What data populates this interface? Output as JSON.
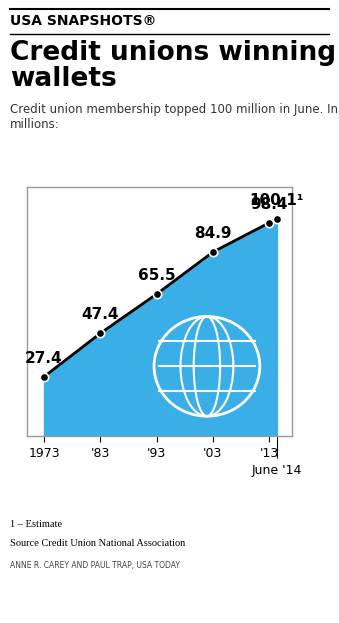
{
  "chart_data": {
    "type": "line",
    "header": "USA SNAPSHOTS®",
    "title": "Credit unions winning wallets",
    "subtitle": "Credit union membership topped 100 million in June. In millions:",
    "x": [
      1973,
      1983,
      1993,
      2003,
      2013,
      2014.4
    ],
    "values": [
      27.4,
      47.4,
      65.5,
      84.9,
      98.4,
      100.1
    ],
    "value_labels": [
      "27.4",
      "47.4",
      "65.5",
      "84.9",
      "98.4",
      "100.1¹"
    ],
    "data_labels": true,
    "xlim": [
      1970,
      2017
    ],
    "xticks": [
      {
        "value": 1973,
        "label": "1973"
      },
      {
        "value": 1983,
        "label": "'83"
      },
      {
        "value": 1993,
        "label": "'93"
      },
      {
        "value": 2003,
        "label": "'03"
      },
      {
        "value": 2013,
        "label": "'13"
      },
      {
        "value": 2014.4,
        "label": "June '14"
      }
    ],
    "ylim": [
      0,
      115
    ],
    "yticks": [],
    "tick_labels": "x",
    "color": "#3aaee6",
    "marker": "o",
    "line_style": "solid",
    "footnote": "1 – Estimate",
    "source": "Source Credit Union National Association",
    "credit": "ANNE R. CAREY AND PAUL TRAP, USA TODAY"
  }
}
